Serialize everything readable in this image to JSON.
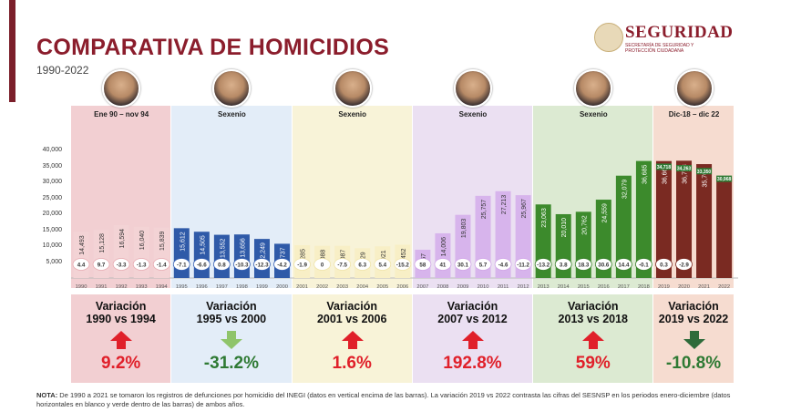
{
  "header": {
    "title": "COMPARATIVA DE HOMICIDIOS",
    "subtitle": "1990-2022"
  },
  "logo": {
    "title": "SEGURIDAD",
    "subtitle": "SECRETARÍA DE SEGURIDAD Y PROTECCIÓN CIUDADANA"
  },
  "colors": {
    "brand": "#8b1d2c",
    "up_arrow": "#e0202a",
    "down_arrow_light": "#8fc46a",
    "down_arrow_dark": "#2e6b3a"
  },
  "periods": [
    {
      "label": "Ene 90 – nov 94",
      "bg": "#f2cfd2",
      "bar": "#f3d3d5",
      "badge": "#e6a9b0"
    },
    {
      "label": "Sexenio",
      "bg": "#e3edf8",
      "bar": "#2f5aa8",
      "badge": "#3a63b5"
    },
    {
      "label": "Sexenio",
      "bg": "#f8f3d8",
      "bar": "#f8efc6",
      "badge": "#efe3a8"
    },
    {
      "label": "Sexenio",
      "bg": "#ebe0f2",
      "bar": "#d7b4ec",
      "badge": "#cfa3e6"
    },
    {
      "label": "Sexenio",
      "bg": "#dcead2",
      "bar": "#3c8a2c",
      "badge": "#3a7f2c"
    },
    {
      "label": "Dic-18 – dic 22",
      "bg": "#f6dcd0",
      "bar": "#7a2a22",
      "badge": "#7a2a22"
    }
  ],
  "chart_data": {
    "type": "bar",
    "title": "COMPARATIVA DE HOMICIDIOS",
    "subtitle": "1990-2022",
    "ylim": [
      0,
      40000
    ],
    "yticks": [
      "5,000",
      "10,000",
      "15,000",
      "20,000",
      "25,000",
      "30,000",
      "35,000",
      "40,000"
    ],
    "categories": [
      "1990",
      "1991",
      "1992",
      "1993",
      "1994",
      "1995",
      "1996",
      "1997",
      "1998",
      "1999",
      "2000",
      "2001",
      "2002",
      "2003",
      "2004",
      "2005",
      "2006",
      "2007",
      "2008",
      "2009",
      "2010",
      "2011",
      "2012",
      "2013",
      "2014",
      "2015",
      "2016",
      "2017",
      "2018",
      "2019",
      "2020",
      "2021",
      "2022"
    ],
    "values": [
      14493,
      15128,
      16594,
      16040,
      15839,
      15612,
      14505,
      13552,
      13656,
      12249,
      10737,
      10285,
      10088,
      10087,
      9329,
      9921,
      10452,
      8867,
      14006,
      19803,
      25757,
      27213,
      25967,
      23063,
      20010,
      20762,
      24559,
      32079,
      36685,
      36661,
      36773,
      35700,
      null
    ],
    "value_labels": [
      "14,493",
      "15,128",
      "16,594",
      "16,040",
      "15,839",
      "15,612",
      "14,505",
      "13,552",
      "13,656",
      "12,249",
      "10,737",
      "10,285",
      "10,088",
      "10,087",
      "9,329",
      "9,921",
      "10,452",
      "8,867",
      "14,006",
      "19,803",
      "25,757",
      "27,213",
      "25,967",
      "23,063",
      "20,010",
      "20,762",
      "24,559",
      "32,079",
      "36,685",
      "36,661",
      "36,773",
      "35,700",
      ""
    ],
    "variations": [
      "4.4",
      "9.7",
      "-3.3",
      "-1.3",
      "-1.4",
      "-7.1",
      "-6.6",
      "0.8",
      "-10.3",
      "-12.3",
      "-4.2",
      "-1.9",
      "0",
      "-7.5",
      "6.3",
      "5.4",
      "-15.2",
      "58",
      "41",
      "30.1",
      "5.7",
      "-4.6",
      "-11.2",
      "-13.2",
      "3.8",
      "18.3",
      "30.6",
      "14.4",
      "-0.1",
      "0.3",
      "-2.9",
      "",
      ""
    ],
    "sesnsp_values": [
      34718,
      34263,
      33350,
      30968
    ],
    "sesnsp_labels": [
      "34,718",
      "34,263",
      "33,350",
      "30,968"
    ],
    "sesnsp_years": [
      "2019",
      "2020",
      "2021",
      "2022"
    ],
    "period_ranges": [
      [
        0,
        4
      ],
      [
        5,
        10
      ],
      [
        11,
        16
      ],
      [
        17,
        22
      ],
      [
        23,
        28
      ],
      [
        29,
        32
      ]
    ]
  },
  "cards": [
    {
      "label": "Variación\n1990 vs 1994",
      "value": "9.2%",
      "direction": "up"
    },
    {
      "label": "Variación\n1995 vs 2000",
      "value": "-31.2%",
      "direction": "down-light"
    },
    {
      "label": "Variación\n2001 vs 2006",
      "value": "1.6%",
      "direction": "up"
    },
    {
      "label": "Variación\n2007 vs 2012",
      "value": "192.8%",
      "direction": "up"
    },
    {
      "label": "Variación\n2013 vs 2018",
      "value": "59%",
      "direction": "up"
    },
    {
      "label": "Variación\n2019 vs 2022",
      "value": "-10.8%",
      "direction": "down-dark"
    }
  ],
  "note": {
    "lead": "NOTA:",
    "text": " De 1990 a 2021 se tomaron los registros de defunciones por homicidio del INEGI (datos en vertical encima de las barras). La variación 2019 vs 2022 contrasta las cifras del SESNSP en los periodos enero-diciembre (datos horizontales en blanco y verde dentro de las barras) de ambos años."
  }
}
